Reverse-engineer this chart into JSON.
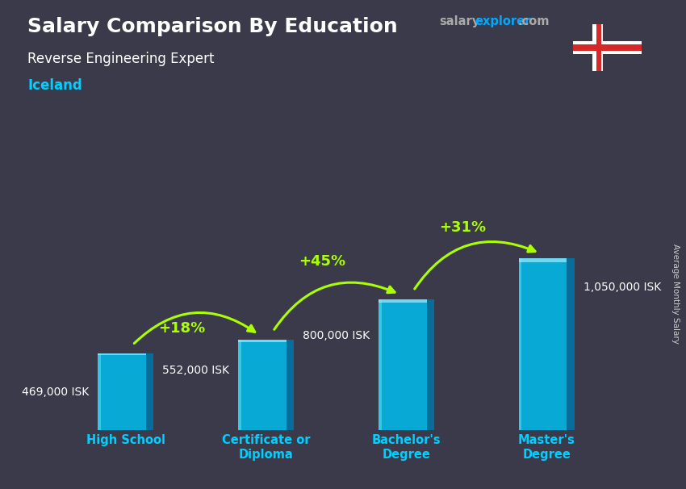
{
  "title": "Salary Comparison By Education",
  "subtitle": "Reverse Engineering Expert",
  "country": "Iceland",
  "ylabel": "Average Monthly Salary",
  "categories": [
    "High School",
    "Certificate or\nDiploma",
    "Bachelor's\nDegree",
    "Master's\nDegree"
  ],
  "values": [
    469000,
    552000,
    800000,
    1050000
  ],
  "value_labels": [
    "469,000 ISK",
    "552,000 ISK",
    "800,000 ISK",
    "1,050,000 ISK"
  ],
  "pct_labels": [
    "+18%",
    "+45%",
    "+31%"
  ],
  "bar_face_color": "#00BFEE",
  "bar_side_color": "#0077AA",
  "bar_highlight_color": "#66EEFF",
  "bg_color": "#3a3a4a",
  "title_color": "#FFFFFF",
  "subtitle_color": "#FFFFFF",
  "country_color": "#00CFFF",
  "value_color": "#FFFFFF",
  "pct_color": "#AAFF00",
  "arrow_color": "#AAFF00",
  "xtick_color": "#00CFFF",
  "ylabel_color": "#CCCCCC",
  "watermark_salary_color": "#AAAAAA",
  "watermark_rest_color": "#00AAFF",
  "figwidth": 8.5,
  "figheight": 6.06,
  "dpi": 100
}
